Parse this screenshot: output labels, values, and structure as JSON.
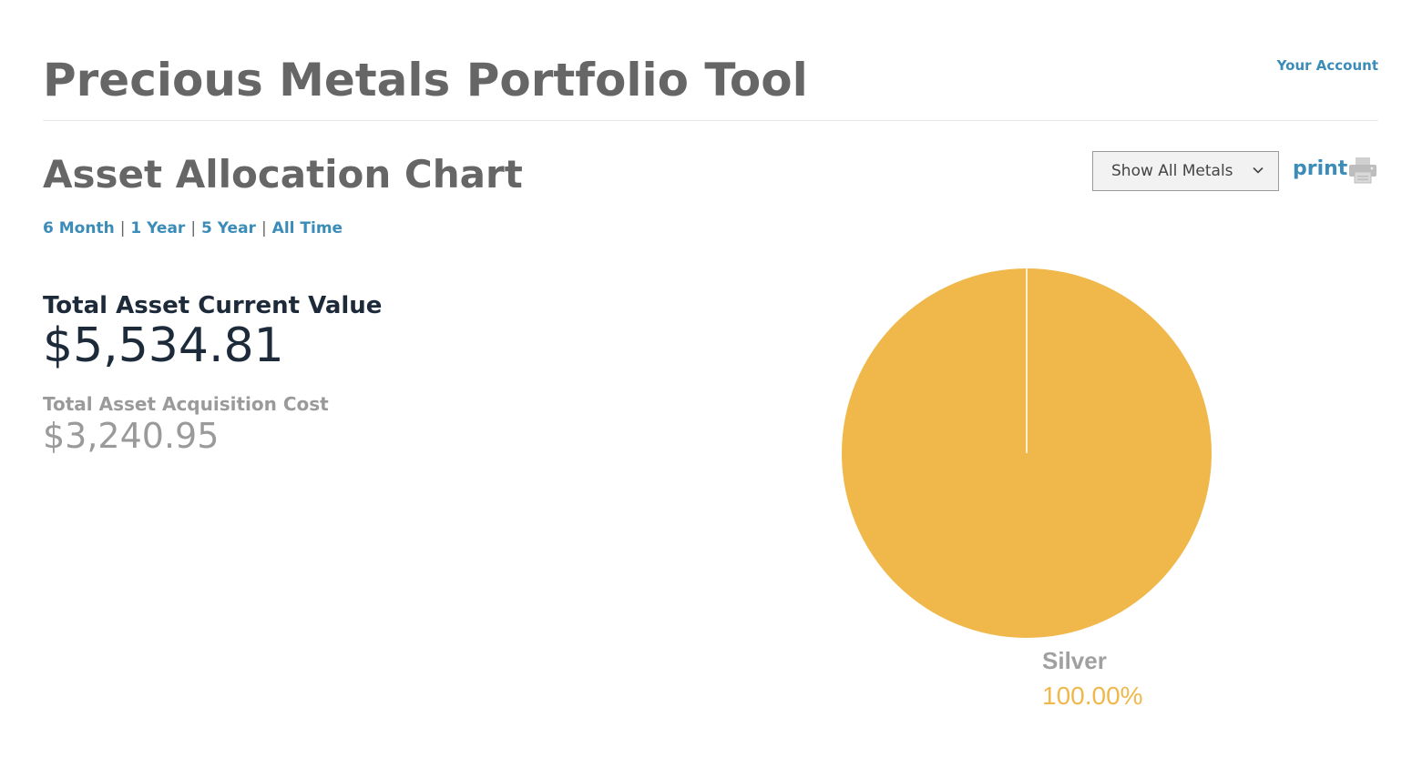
{
  "header": {
    "title": "Precious Metals Portfolio Tool",
    "account_link": "Your Account"
  },
  "section": {
    "title": "Asset Allocation Chart",
    "metal_filter": {
      "selected": "Show All Metals",
      "icon": "chevron-down-icon"
    },
    "print_label": "print",
    "print_icon": "printer-icon",
    "periods": [
      "6 Month",
      "1 Year",
      "5 Year",
      "All Time"
    ],
    "period_separator": "|"
  },
  "summary": {
    "current_label": "Total Asset Current Value",
    "current_value": "$5,534.81",
    "cost_label": "Total Asset Acquisition Cost",
    "cost_value": "$3,240.95"
  },
  "colors": {
    "accent": "#3b8cb8",
    "title": "#666666",
    "value_dark": "#1c2a3a",
    "muted": "#9a9a9a",
    "silver_slice": "#f0b84b"
  },
  "chart_data": {
    "type": "pie",
    "title": "",
    "slices": [
      {
        "label": "Silver",
        "value": 100.0,
        "display": "100.00%",
        "color": "#f0b84b"
      }
    ],
    "legend": "none"
  }
}
